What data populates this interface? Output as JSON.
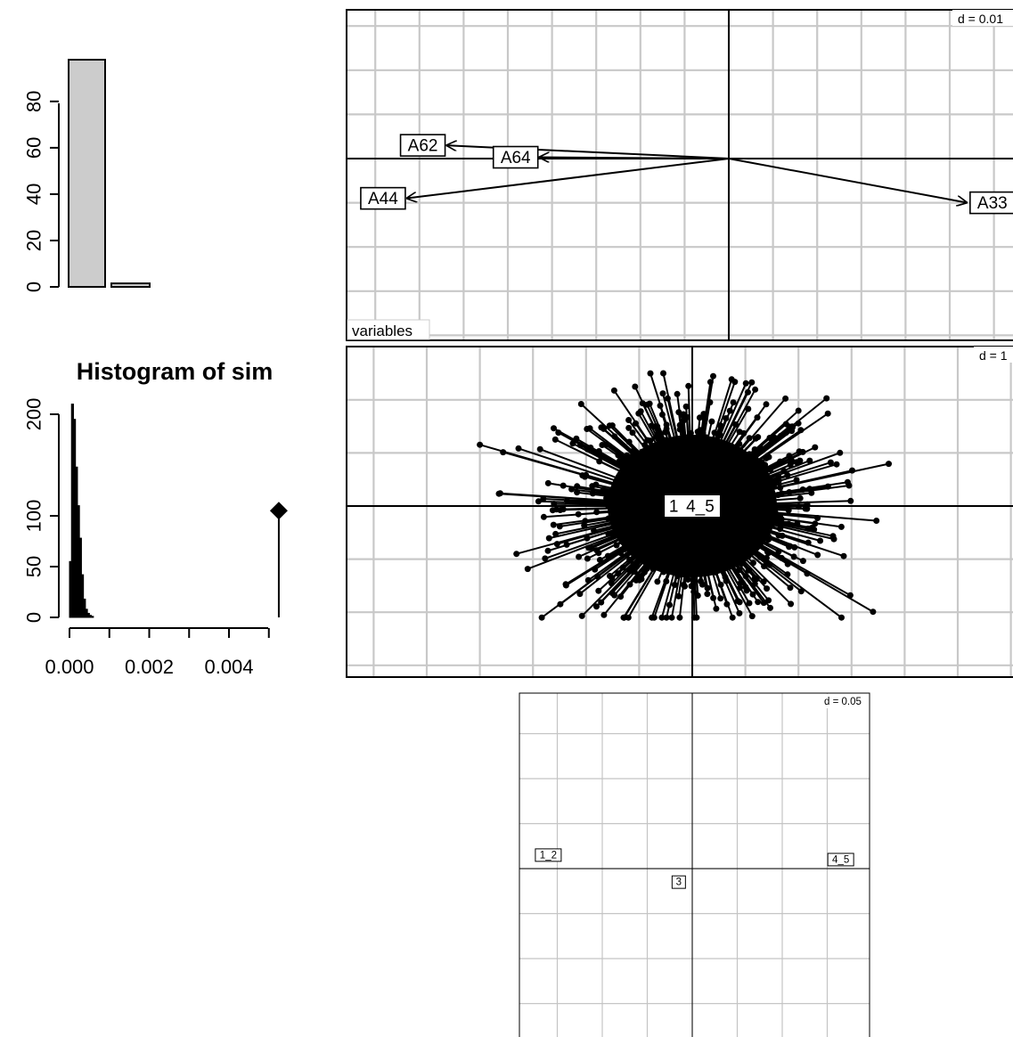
{
  "chart_data": [
    {
      "id": "eigenvalue_barplot",
      "type": "bar",
      "title": "",
      "values": [
        98,
        1.5
      ],
      "ylim": [
        0,
        98
      ],
      "y_ticks": [
        "0",
        "20",
        "40",
        "60",
        "80"
      ],
      "colors": {
        "fill": "#cccccc",
        "stroke": "#000000"
      }
    },
    {
      "id": "histogram_of_sim",
      "type": "bar",
      "title": "Histogram of sim",
      "xlim": [
        0.0,
        0.0052
      ],
      "ylim": [
        0,
        215
      ],
      "x_ticks": [
        "0.000",
        "0.002",
        "0.004"
      ],
      "y_ticks": [
        "0",
        "50",
        "100",
        "200"
      ],
      "bins": [
        {
          "x": 0.0,
          "count": 55
        },
        {
          "x": 5e-05,
          "count": 210
        },
        {
          "x": 0.0001,
          "count": 195
        },
        {
          "x": 0.00015,
          "count": 148
        },
        {
          "x": 0.0002,
          "count": 110
        },
        {
          "x": 0.00025,
          "count": 78
        },
        {
          "x": 0.0003,
          "count": 42
        },
        {
          "x": 0.00035,
          "count": 18
        },
        {
          "x": 0.0004,
          "count": 8
        },
        {
          "x": 0.00045,
          "count": 4
        },
        {
          "x": 0.0005,
          "count": 2
        },
        {
          "x": 0.00055,
          "count": 1
        }
      ],
      "bin_width": 5e-05,
      "observed": {
        "x": 0.00525,
        "y": 105
      }
    },
    {
      "id": "variables_plot",
      "type": "scatter",
      "title": "",
      "panel_label": "variables",
      "scale_label": "d = 0.01",
      "xlim": [
        -0.086,
        0.064
      ],
      "ylim": [
        -0.04,
        0.034
      ],
      "grid_step": 0.01,
      "arrows": [
        {
          "label": "A62",
          "x": -0.064,
          "y": 0.003
        },
        {
          "label": "A64",
          "x": -0.043,
          "y": 0.0003
        },
        {
          "label": "A44",
          "x": -0.073,
          "y": -0.009
        },
        {
          "label": "A33",
          "x": 0.054,
          "y": -0.01
        }
      ]
    },
    {
      "id": "individuals_plot",
      "type": "scatter",
      "title": "",
      "scale_label": "d = 1",
      "xlim": [
        -6.5,
        6.0
      ],
      "ylim": [
        -3.2,
        3.0
      ],
      "grid_step": 1,
      "group_labels": [
        {
          "label": "1",
          "x": -0.35,
          "y": 0.0
        },
        {
          "label": "4_5",
          "x": 0.15,
          "y": 0.0
        }
      ],
      "cloud": {
        "n_points": 900,
        "sd_x": 1.25,
        "sd_y": 1.0,
        "extreme_x": [
          -4.0,
          3.7
        ],
        "extreme_y": [
          -2.1,
          2.5
        ]
      }
    },
    {
      "id": "groups_plot",
      "type": "scatter",
      "title": "",
      "scale_label": "d = 0.05",
      "xlim": [
        -0.19,
        0.2
      ],
      "ylim": [
        -0.19,
        0.19
      ],
      "grid_step": 0.05,
      "points": [
        {
          "label": "1_2",
          "x": -0.16,
          "y": 0.015
        },
        {
          "label": "3",
          "x": -0.015,
          "y": -0.015
        },
        {
          "label": "4_5",
          "x": 0.165,
          "y": 0.01
        }
      ]
    }
  ]
}
